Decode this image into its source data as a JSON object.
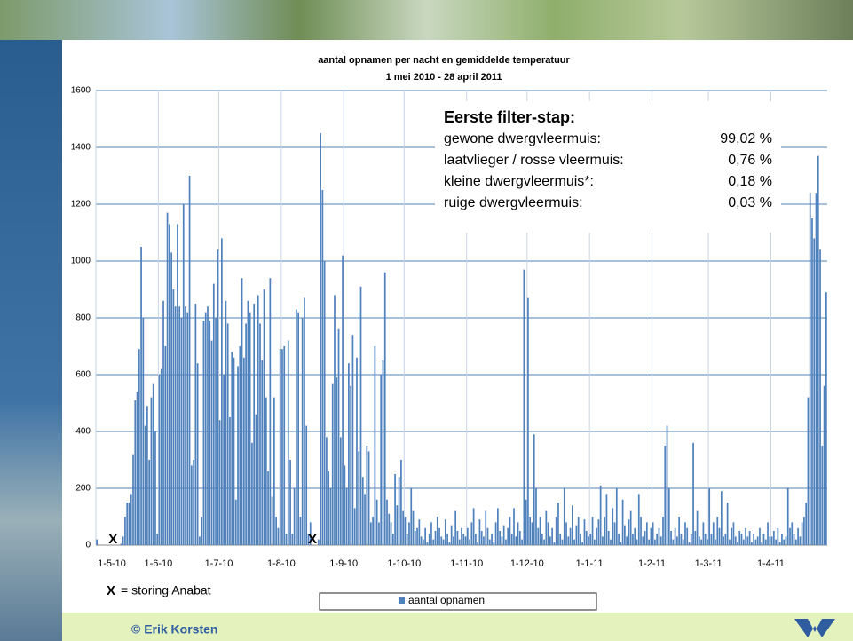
{
  "chart_data": {
    "type": "bar",
    "title": "aantal opnamen per nacht en gemiddelde temperatuur",
    "subtitle": "1 mei 2010 - 28 april 2011",
    "categories": [
      "1-5-10",
      null,
      null,
      null,
      null,
      null,
      null,
      null,
      null,
      null,
      null,
      null,
      null,
      null,
      null,
      null,
      null,
      null,
      null,
      null,
      null,
      null,
      null,
      null,
      null,
      null,
      null,
      null,
      null,
      null,
      null,
      "1-6-10",
      null,
      null,
      null,
      null,
      null,
      null,
      null,
      null,
      null,
      null,
      null,
      null,
      null,
      null,
      null,
      null,
      null,
      null,
      null,
      null,
      null,
      null,
      null,
      null,
      null,
      null,
      null,
      null,
      null,
      "1-7-10",
      null,
      null,
      null,
      null,
      null,
      null,
      null,
      null,
      null,
      null,
      null,
      null,
      null,
      null,
      null,
      null,
      null,
      null,
      null,
      null,
      null,
      null,
      null,
      null,
      null,
      null,
      null,
      null,
      null,
      null,
      "1-8-10",
      null,
      null,
      null,
      null,
      null,
      null,
      null,
      null,
      null,
      null,
      null,
      null,
      null,
      null,
      null,
      null,
      null,
      null,
      null,
      null,
      null,
      null,
      null,
      null,
      null,
      null,
      null,
      null,
      null,
      null,
      "1-9-10",
      null,
      null,
      null,
      null,
      null,
      null,
      null,
      null,
      null,
      null,
      null,
      null,
      null,
      null,
      null,
      null,
      null,
      null,
      null,
      null,
      null,
      null,
      null,
      null,
      null,
      null,
      null,
      null,
      null,
      "1-10-10",
      null,
      null,
      null,
      null,
      null,
      null,
      null,
      null,
      null,
      null,
      null,
      null,
      null,
      null,
      null,
      null,
      null,
      null,
      null,
      null,
      null,
      null,
      null,
      null,
      null,
      null,
      null,
      null,
      null,
      null,
      "1-11-10",
      null,
      null,
      null,
      null,
      null,
      null,
      null,
      null,
      null,
      null,
      null,
      null,
      null,
      null,
      null,
      null,
      null,
      null,
      null,
      null,
      null,
      null,
      null,
      null,
      null,
      null,
      null,
      null,
      null,
      "1-12-10",
      null,
      null,
      null,
      null,
      null,
      null,
      null,
      null,
      null,
      null,
      null,
      null,
      null,
      null,
      null,
      null,
      null,
      null,
      null,
      null,
      null,
      null,
      null,
      null,
      null,
      null,
      null,
      null,
      null,
      null,
      "1-1-11",
      null,
      null,
      null,
      null,
      null,
      null,
      null,
      null,
      null,
      null,
      null,
      null,
      null,
      null,
      null,
      null,
      null,
      null,
      null,
      null,
      null,
      null,
      null,
      null,
      null,
      null,
      null,
      null,
      null,
      null,
      "1-2-11",
      null,
      null,
      null,
      null,
      null,
      null,
      null,
      null,
      null,
      null,
      null,
      null,
      null,
      null,
      null,
      null,
      null,
      null,
      null,
      null,
      null,
      null,
      null,
      null,
      null,
      null,
      null,
      "1-3-11",
      null,
      null,
      null,
      null,
      null,
      null,
      null,
      null,
      null,
      null,
      null,
      null,
      null,
      null,
      null,
      null,
      null,
      null,
      null,
      null,
      null,
      null,
      null,
      null,
      null,
      null,
      null,
      null,
      null,
      null,
      "1-4-11",
      null,
      null,
      null,
      null,
      null,
      null,
      null,
      null,
      null,
      null,
      null,
      null,
      null,
      null,
      null,
      null,
      null,
      null,
      null,
      null,
      null,
      null,
      null,
      null,
      null,
      null,
      null
    ],
    "series": [
      {
        "name": "aantal opnamen",
        "color": "#4f81bd",
        "values": [
          20,
          0,
          0,
          0,
          0,
          0,
          0,
          0,
          0,
          0,
          0,
          0,
          5,
          30,
          100,
          150,
          150,
          180,
          320,
          510,
          540,
          690,
          1050,
          800,
          420,
          490,
          300,
          520,
          570,
          400,
          40,
          600,
          620,
          860,
          700,
          1170,
          1130,
          1030,
          900,
          840,
          1130,
          840,
          800,
          1200,
          840,
          820,
          1300,
          280,
          300,
          850,
          640,
          30,
          100,
          790,
          820,
          840,
          790,
          720,
          920,
          800,
          1040,
          440,
          1080,
          600,
          860,
          780,
          450,
          680,
          660,
          160,
          630,
          700,
          940,
          660,
          780,
          860,
          820,
          360,
          850,
          460,
          880,
          780,
          650,
          900,
          520,
          260,
          940,
          170,
          520,
          100,
          60,
          690,
          690,
          700,
          40,
          720,
          300,
          40,
          200,
          830,
          820,
          100,
          800,
          870,
          420,
          40,
          80,
          0,
          0,
          0,
          20,
          1450,
          1250,
          1000,
          380,
          260,
          200,
          570,
          880,
          590,
          760,
          380,
          1020,
          280,
          200,
          640,
          560,
          740,
          130,
          660,
          330,
          910,
          240,
          180,
          350,
          330,
          80,
          100,
          700,
          160,
          80,
          600,
          650,
          960,
          160,
          110,
          80,
          40,
          250,
          140,
          240,
          300,
          120,
          100,
          40,
          80,
          200,
          120,
          50,
          60,
          90,
          30,
          20,
          60,
          10,
          40,
          80,
          20,
          50,
          100,
          60,
          30,
          20,
          90,
          40,
          10,
          70,
          30,
          120,
          50,
          20,
          60,
          40,
          30,
          60,
          20,
          80,
          130,
          40,
          10,
          90,
          50,
          30,
          120,
          60,
          20,
          40,
          10,
          80,
          130,
          50,
          30,
          70,
          20,
          60,
          100,
          40,
          130,
          30,
          80,
          50,
          20,
          970,
          160,
          870,
          100,
          80,
          390,
          200,
          60,
          100,
          40,
          20,
          120,
          80,
          30,
          60,
          10,
          100,
          150,
          40,
          20,
          200,
          80,
          30,
          60,
          140,
          20,
          70,
          100,
          40,
          10,
          90,
          50,
          30,
          40,
          100,
          20,
          60,
          90,
          210,
          30,
          100,
          180,
          50,
          20,
          130,
          80,
          200,
          40,
          10,
          160,
          70,
          30,
          90,
          120,
          40,
          60,
          20,
          180,
          100,
          30,
          50,
          80,
          20,
          60,
          80,
          20,
          40,
          60,
          30,
          100,
          350,
          420,
          200,
          50,
          20,
          60,
          30,
          100,
          40,
          20,
          80,
          60,
          10,
          40,
          360,
          50,
          120,
          30,
          20,
          80,
          40,
          20,
          200,
          40,
          80,
          20,
          100,
          60,
          190,
          30,
          40,
          150,
          20,
          60,
          80,
          30,
          10,
          50,
          40,
          20,
          60,
          30,
          50,
          10,
          40,
          20,
          30,
          60,
          10,
          40,
          20,
          80,
          30,
          30,
          50,
          20,
          60,
          10,
          40,
          20,
          30,
          200,
          60,
          80,
          40,
          20,
          60,
          30,
          80,
          100,
          150,
          520,
          1240,
          1150,
          1080,
          1240,
          1370,
          1040,
          350,
          560,
          890
        ]
      }
    ],
    "ylim": [
      0,
      1600
    ],
    "yticks": [
      0,
      200,
      400,
      600,
      800,
      1000,
      1200,
      1400,
      1600
    ],
    "grid": true,
    "legend": "bottom",
    "filter_box": {
      "title": "Eerste filter-stap:",
      "rows": [
        {
          "label": "gewone dwergvleermuis:",
          "value": "99,02 %"
        },
        {
          "label": "laatvlieger / rosse vleermuis:",
          "value": "0,76 %"
        },
        {
          "label": "kleine dwergvleermuis*:",
          "value": "0,18 %"
        },
        {
          "label": "ruige dwergvleermuis:",
          "value": "0,03 %"
        }
      ]
    },
    "storing_marks": [
      "X",
      "X"
    ],
    "note_symbol": "X",
    "note_text": "= storing Anabat"
  },
  "footer": "© Erik Korsten"
}
